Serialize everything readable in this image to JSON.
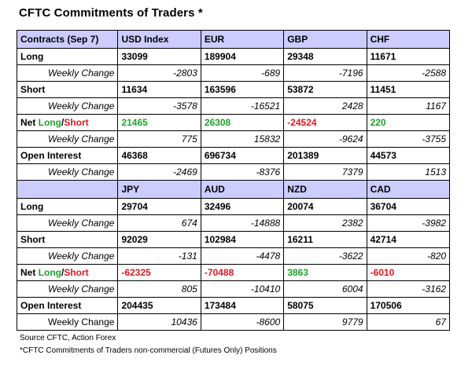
{
  "title": "CFTC Commitments of Traders *",
  "table1": {
    "header": [
      "Contracts (Sep 7)",
      "USD Index",
      "EUR",
      "GBP",
      "CHF"
    ],
    "long": {
      "label": "Long",
      "values": [
        "33099",
        "189904",
        "29348",
        "11671"
      ]
    },
    "long_change": {
      "label": "Weekly Change",
      "values": [
        "-2803",
        "-689",
        "-7196",
        "-2588"
      ]
    },
    "short": {
      "label": "Short",
      "values": [
        "11634",
        "163596",
        "53872",
        "11451"
      ]
    },
    "short_change": {
      "label": "Weekly Change",
      "values": [
        "-3578",
        "-16521",
        "2428",
        "1167"
      ]
    },
    "net": {
      "label_prefix": "Net ",
      "label_long": "Long",
      "label_sep": "/",
      "label_short": "Short",
      "values": [
        "21465",
        "26308",
        "-24524",
        "220"
      ],
      "colors": [
        "green",
        "green",
        "red",
        "green"
      ]
    },
    "net_change": {
      "label": "Weekly Change",
      "values": [
        "775",
        "15832",
        "-9624",
        "-3755"
      ]
    },
    "oi": {
      "label": "Open Interest",
      "values": [
        "46368",
        "696734",
        "201389",
        "44573"
      ]
    },
    "oi_change": {
      "label": "Weekly Change",
      "values": [
        "-2469",
        "-8376",
        "7379",
        "1513"
      ]
    }
  },
  "table2": {
    "header": [
      "",
      "JPY",
      "AUD",
      "NZD",
      "CAD"
    ],
    "long": {
      "label": "Long",
      "values": [
        "29704",
        "32496",
        "20074",
        "36704"
      ]
    },
    "long_change": {
      "label": "Weekly Change",
      "values": [
        "674",
        "-14888",
        "2382",
        "-3982"
      ]
    },
    "short": {
      "label": "Short",
      "values": [
        "92029",
        "102984",
        "16211",
        "42714"
      ]
    },
    "short_change": {
      "label": "Weekly Change",
      "values": [
        "-131",
        "-4478",
        "-3622",
        "-820"
      ]
    },
    "net": {
      "label_prefix": "Net ",
      "label_long": "Long",
      "label_sep": "/",
      "label_short": "Short",
      "values": [
        "-62325",
        "-70488",
        "3863",
        "-6010"
      ],
      "colors": [
        "red",
        "red",
        "green",
        "red"
      ]
    },
    "net_change": {
      "label": "Weekly Change",
      "values": [
        "805",
        "-10410",
        "6004",
        "-3162"
      ]
    },
    "oi": {
      "label": "Open Interest",
      "values": [
        "204435",
        "173484",
        "58075",
        "170506"
      ]
    },
    "oi_change": {
      "label": "Weekly Change",
      "values": [
        "10436",
        "-8600",
        "9779",
        "67"
      ]
    }
  },
  "colors": {
    "header_bg": "#ccccff",
    "positive": "#1fa02a",
    "negative": "#d71920"
  },
  "footnotes": {
    "source": "Source CFTC, Action Forex",
    "note": "*CFTC Commitments of Traders non-commercial (Futures Only) Positions"
  }
}
